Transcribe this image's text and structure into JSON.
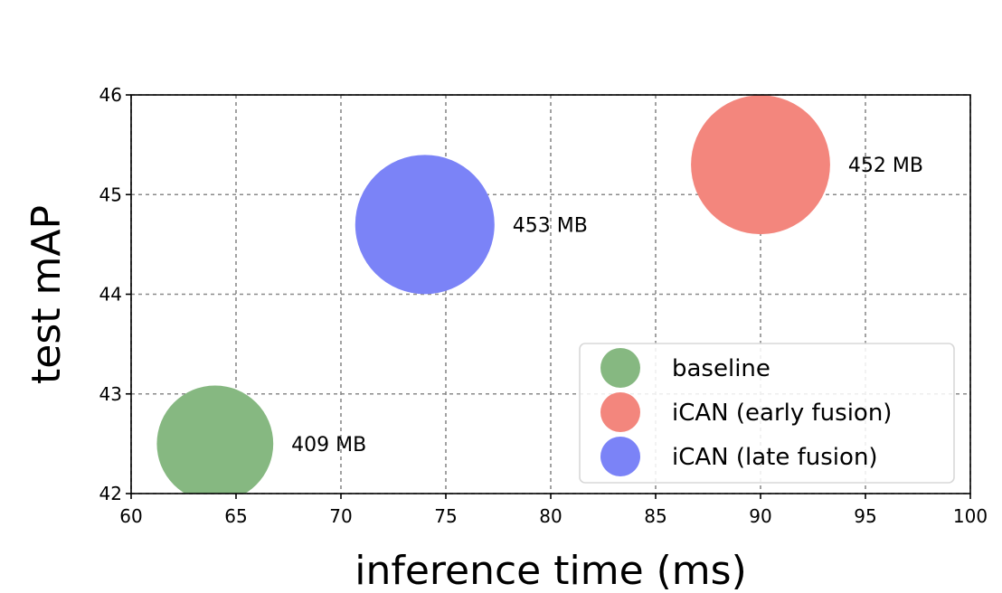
{
  "chart_data": {
    "type": "scatter",
    "xlabel": "inference time (ms)",
    "ylabel": "test mAP",
    "xlim": [
      60,
      100
    ],
    "ylim": [
      42,
      46
    ],
    "x_ticks": [
      60,
      65,
      70,
      75,
      80,
      85,
      90,
      95,
      100
    ],
    "y_ticks": [
      42,
      43,
      44,
      45,
      46
    ],
    "grid": true,
    "legend_position": "bottom-right",
    "series": [
      {
        "name": "baseline",
        "color": "#86b881",
        "x": 64,
        "y": 42.5,
        "size_mb": 409,
        "label": "409 MB"
      },
      {
        "name": "iCAN (early fusion)",
        "color": "#f3867d",
        "x": 90,
        "y": 45.3,
        "size_mb": 452,
        "label": "452 MB"
      },
      {
        "name": "iCAN (late fusion)",
        "color": "#7b83f7",
        "x": 74,
        "y": 44.7,
        "size_mb": 453,
        "label": "453 MB"
      }
    ]
  }
}
